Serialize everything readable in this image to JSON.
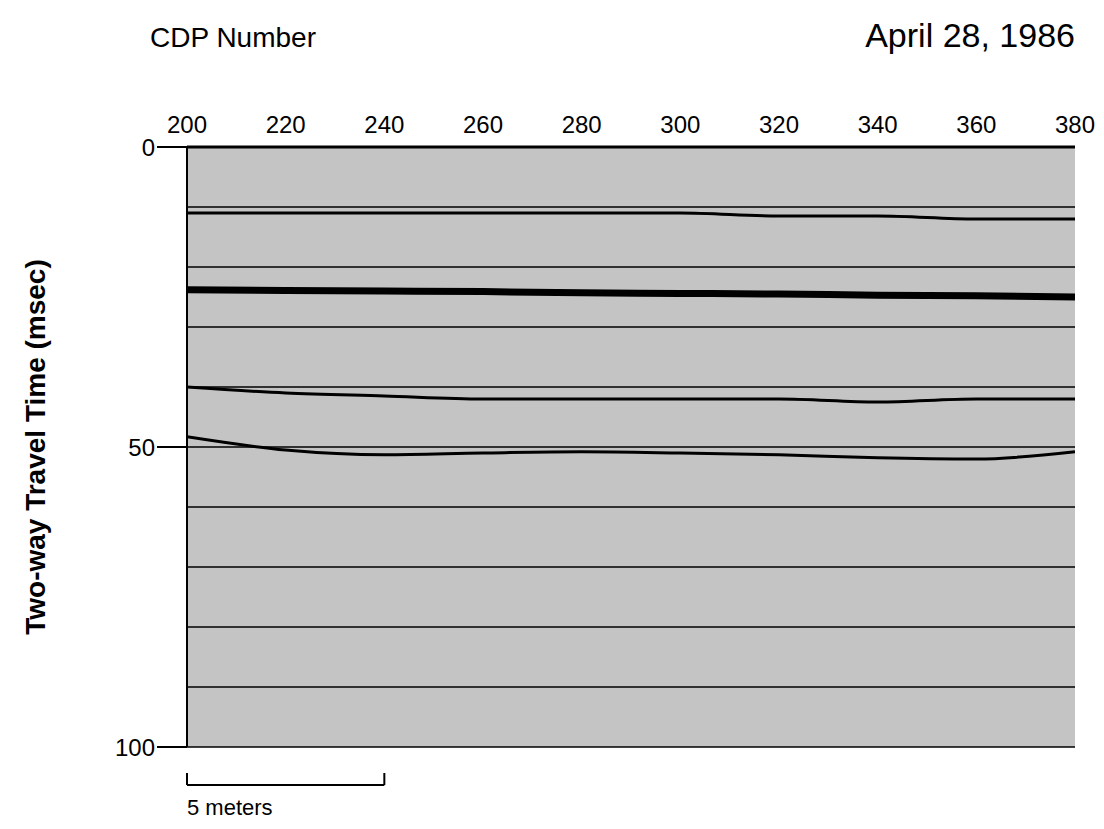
{
  "chart_data": {
    "type": "line",
    "title": "April 28, 1986",
    "x_label": "CDP Number",
    "y_label": "Two-way Travel Time (msec)",
    "x": [
      200,
      220,
      240,
      260,
      280,
      300,
      320,
      340,
      360,
      380
    ],
    "series": [
      {
        "color": "#000000",
        "values": [
          11,
          11,
          11,
          11,
          11,
          11,
          11.5,
          11.5,
          12,
          12
        ]
      },
      {
        "color": "#000000",
        "values": [
          23.8,
          23.9,
          24,
          24.1,
          24.3,
          24.4,
          24.5,
          24.7,
          24.8,
          25
        ]
      },
      {
        "color": "#000000",
        "values": [
          40,
          41,
          41.5,
          42,
          42,
          42,
          42,
          42.5,
          42,
          42
        ]
      },
      {
        "color": "#000000",
        "values": [
          48.3,
          50.5,
          51.3,
          51,
          50.8,
          51,
          51.3,
          51.8,
          52,
          50.8
        ]
      }
    ],
    "xlim": [
      200,
      380
    ],
    "xticks": [
      200,
      220,
      240,
      260,
      280,
      300,
      320,
      340,
      360,
      380
    ],
    "ylim": [
      0,
      100
    ],
    "yticks": [
      0,
      50,
      100
    ],
    "hlines": [
      10,
      20,
      30,
      40,
      50,
      60,
      70,
      80,
      90,
      100
    ],
    "scale_bar": {
      "label": "5 meters",
      "from": 200,
      "to": 240
    }
  }
}
